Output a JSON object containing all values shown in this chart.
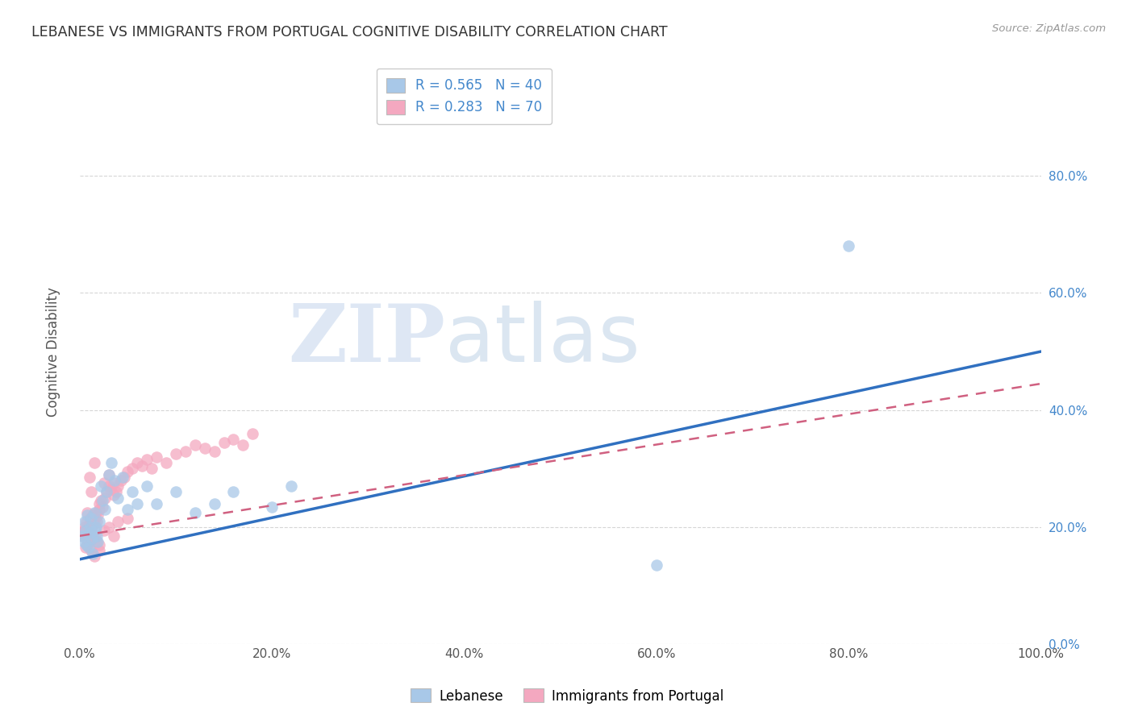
{
  "title": "LEBANESE VS IMMIGRANTS FROM PORTUGAL COGNITIVE DISABILITY CORRELATION CHART",
  "source": "Source: ZipAtlas.com",
  "ylabel": "Cognitive Disability",
  "xlim": [
    0,
    1.0
  ],
  "ylim": [
    0,
    1.0
  ],
  "xtick_vals": [
    0.0,
    0.2,
    0.4,
    0.6,
    0.8,
    1.0
  ],
  "xtick_labels": [
    "0.0%",
    "20.0%",
    "40.0%",
    "60.0%",
    "80.0%",
    "100.0%"
  ],
  "ytick_vals": [
    0.0,
    0.2,
    0.4,
    0.6,
    0.8
  ],
  "ytick_labels": [
    "0.0%",
    "20.0%",
    "40.0%",
    "60.0%",
    "80.0%"
  ],
  "blue_color": "#a8c8e8",
  "pink_color": "#f4a8c0",
  "line_blue": "#3070c0",
  "line_pink": "#d06080",
  "watermark_zip": "ZIP",
  "watermark_atlas": "atlas",
  "blue_line_start_y": 0.145,
  "blue_line_end_y": 0.5,
  "pink_line_start_y": 0.185,
  "pink_line_end_y": 0.445,
  "lebanese_x": [
    0.003,
    0.004,
    0.005,
    0.006,
    0.007,
    0.008,
    0.009,
    0.01,
    0.011,
    0.012,
    0.013,
    0.014,
    0.015,
    0.016,
    0.017,
    0.018,
    0.019,
    0.02,
    0.022,
    0.024,
    0.026,
    0.028,
    0.03,
    0.033,
    0.036,
    0.04,
    0.045,
    0.05,
    0.055,
    0.06,
    0.07,
    0.08,
    0.1,
    0.12,
    0.14,
    0.16,
    0.2,
    0.22,
    0.6,
    0.8
  ],
  "lebanese_y": [
    0.185,
    0.175,
    0.21,
    0.195,
    0.17,
    0.22,
    0.165,
    0.19,
    0.2,
    0.215,
    0.18,
    0.155,
    0.225,
    0.195,
    0.2,
    0.185,
    0.175,
    0.21,
    0.27,
    0.245,
    0.23,
    0.26,
    0.29,
    0.31,
    0.28,
    0.25,
    0.285,
    0.23,
    0.26,
    0.24,
    0.27,
    0.24,
    0.26,
    0.225,
    0.24,
    0.26,
    0.235,
    0.27,
    0.135,
    0.68
  ],
  "portugal_x": [
    0.002,
    0.003,
    0.004,
    0.005,
    0.006,
    0.007,
    0.008,
    0.009,
    0.01,
    0.011,
    0.012,
    0.013,
    0.014,
    0.015,
    0.016,
    0.017,
    0.018,
    0.019,
    0.02,
    0.022,
    0.024,
    0.026,
    0.028,
    0.03,
    0.032,
    0.035,
    0.038,
    0.04,
    0.043,
    0.046,
    0.05,
    0.055,
    0.06,
    0.065,
    0.07,
    0.075,
    0.08,
    0.09,
    0.1,
    0.11,
    0.12,
    0.13,
    0.14,
    0.15,
    0.16,
    0.17,
    0.18,
    0.006,
    0.008,
    0.01,
    0.012,
    0.014,
    0.016,
    0.018,
    0.02,
    0.025,
    0.03,
    0.035,
    0.04,
    0.05,
    0.008,
    0.01,
    0.012,
    0.015,
    0.02,
    0.025,
    0.03,
    0.035,
    0.015,
    0.02
  ],
  "portugal_y": [
    0.19,
    0.185,
    0.195,
    0.2,
    0.185,
    0.21,
    0.195,
    0.175,
    0.205,
    0.215,
    0.2,
    0.19,
    0.22,
    0.205,
    0.215,
    0.225,
    0.21,
    0.22,
    0.23,
    0.245,
    0.235,
    0.25,
    0.26,
    0.27,
    0.265,
    0.275,
    0.26,
    0.27,
    0.28,
    0.285,
    0.295,
    0.3,
    0.31,
    0.305,
    0.315,
    0.3,
    0.32,
    0.31,
    0.325,
    0.33,
    0.34,
    0.335,
    0.33,
    0.345,
    0.35,
    0.34,
    0.36,
    0.165,
    0.17,
    0.175,
    0.16,
    0.18,
    0.185,
    0.175,
    0.17,
    0.195,
    0.2,
    0.185,
    0.21,
    0.215,
    0.225,
    0.285,
    0.26,
    0.31,
    0.24,
    0.275,
    0.29,
    0.255,
    0.15,
    0.16
  ]
}
